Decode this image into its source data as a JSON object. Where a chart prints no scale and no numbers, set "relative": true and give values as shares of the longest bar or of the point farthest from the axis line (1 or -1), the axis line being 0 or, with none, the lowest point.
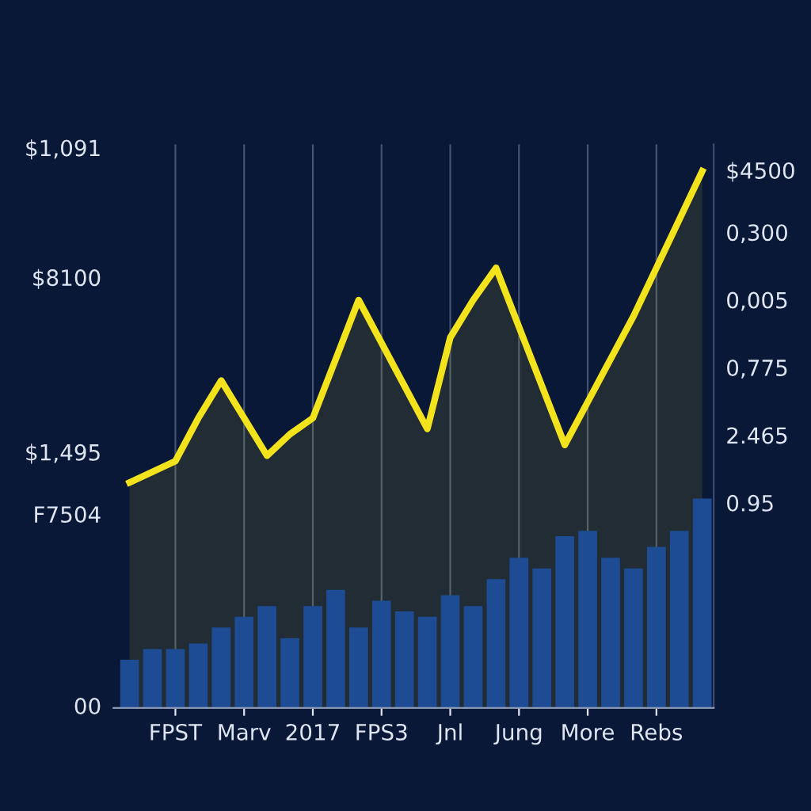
{
  "chart_data": {
    "type": "bar",
    "relative": true,
    "categories": [
      null,
      null,
      "FPST",
      null,
      null,
      "Marv",
      null,
      null,
      "2017",
      null,
      null,
      "FPS3",
      null,
      null,
      "Jnl",
      null,
      null,
      "Jung",
      null,
      null,
      "More",
      null,
      null,
      "Rebs",
      null,
      null
    ],
    "annotations": [
      "$1,091",
      "$8100",
      "$1,495",
      "F7504",
      "00",
      "$4500",
      "0,300",
      "0,005",
      "0,775",
      "2.465",
      "0.95"
    ],
    "grid": "x",
    "series": [
      {
        "color": "#1d4b94",
        "values": [
          0.09,
          0.11,
          0.11,
          0.12,
          0.15,
          0.17,
          0.19,
          0.13,
          0.19,
          0.22,
          0.15,
          0.2,
          0.18,
          0.17,
          0.21,
          0.19,
          0.24,
          0.28,
          0.26,
          0.32,
          0.33,
          0.28,
          0.26,
          0.3,
          0.33,
          0.39
        ]
      },
      {
        "type": "area",
        "color": "#f2e31c",
        "values": [
          0.42,
          0.44,
          0.46,
          0.54,
          0.61,
          0.54,
          0.47,
          0.51,
          0.54,
          0.65,
          0.76,
          0.68,
          0.6,
          0.52,
          0.69,
          0.76,
          0.82,
          0.71,
          0.6,
          0.49,
          0.57,
          0.65,
          0.73,
          0.82,
          0.91,
          1.0
        ]
      }
    ]
  }
}
